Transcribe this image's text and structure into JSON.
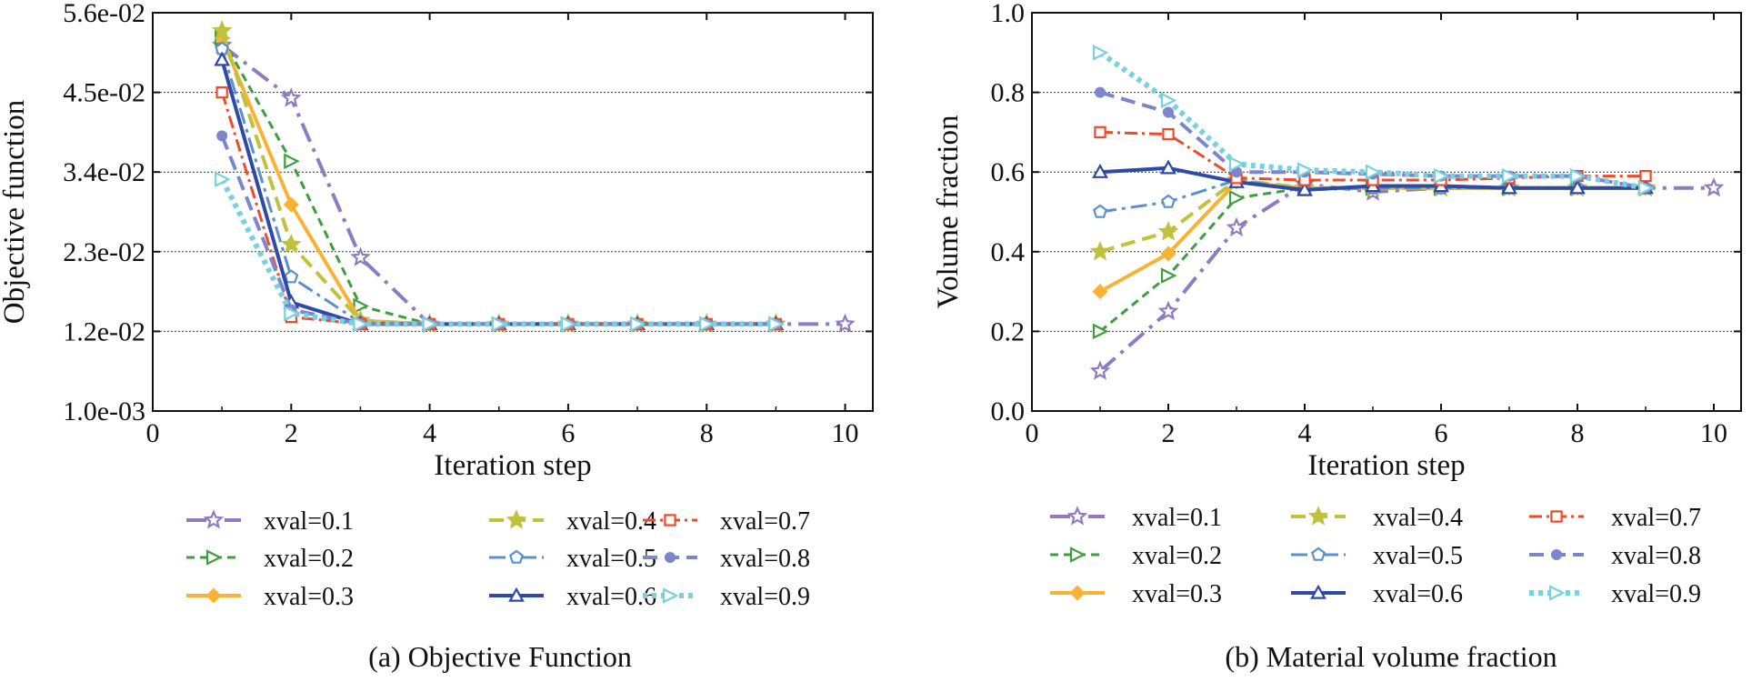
{
  "chart_data": [
    {
      "id": "a",
      "type": "line",
      "caption": "(a)  Objective Function",
      "xlabel": "Iteration step",
      "ylabel": "Objective function",
      "xlim": [
        0,
        10.4
      ],
      "ylim": [
        0.001,
        0.056
      ],
      "xticks": [
        0,
        2,
        4,
        6,
        8,
        10
      ],
      "yticks": [
        0.001,
        0.012,
        0.023,
        0.034,
        0.045,
        0.056
      ],
      "ytick_labels": [
        "1.0e-03",
        "1.2e-02",
        "2.3e-02",
        "3.4e-02",
        "4.5e-02",
        "5.6e-02"
      ],
      "grid": "horizontal dotted",
      "legend_position": "below plot, 3 columns",
      "series": [
        {
          "name": "xval=0.1",
          "x": [
            1,
            2,
            3,
            4,
            5,
            6,
            7,
            8,
            9,
            10
          ],
          "y": [
            0.0515,
            0.0442,
            0.0222,
            0.013,
            0.013,
            0.013,
            0.013,
            0.013,
            0.013,
            0.013
          ]
        },
        {
          "name": "xval=0.2",
          "x": [
            1,
            2,
            3,
            4,
            5,
            6,
            7,
            8,
            9
          ],
          "y": [
            0.0525,
            0.0355,
            0.0155,
            0.013,
            0.013,
            0.013,
            0.013,
            0.013,
            0.013
          ]
        },
        {
          "name": "xval=0.3",
          "x": [
            1,
            2,
            3,
            4,
            5,
            6,
            7,
            8,
            9
          ],
          "y": [
            0.0525,
            0.0295,
            0.0135,
            0.013,
            0.013,
            0.013,
            0.013,
            0.013,
            0.013
          ]
        },
        {
          "name": "xval=0.4",
          "x": [
            1,
            2,
            3,
            4,
            5,
            6,
            7,
            8,
            9
          ],
          "y": [
            0.0535,
            0.024,
            0.0135,
            0.013,
            0.013,
            0.013,
            0.013,
            0.013,
            0.013
          ]
        },
        {
          "name": "xval=0.5",
          "x": [
            1,
            2,
            3,
            4,
            5,
            6,
            7,
            8,
            9
          ],
          "y": [
            0.051,
            0.0195,
            0.0132,
            0.013,
            0.013,
            0.013,
            0.013,
            0.013,
            0.013
          ]
        },
        {
          "name": "xval=0.6",
          "x": [
            1,
            2,
            3,
            4,
            5,
            6,
            7,
            8,
            9
          ],
          "y": [
            0.0495,
            0.016,
            0.013,
            0.013,
            0.013,
            0.013,
            0.013,
            0.013,
            0.013
          ]
        },
        {
          "name": "xval=0.7",
          "x": [
            1,
            2,
            3,
            4,
            5,
            6,
            7,
            8,
            9
          ],
          "y": [
            0.045,
            0.014,
            0.013,
            0.013,
            0.013,
            0.013,
            0.013,
            0.013,
            0.013
          ]
        },
        {
          "name": "xval=0.8",
          "x": [
            1,
            2,
            3,
            4,
            5,
            6,
            7,
            8,
            9
          ],
          "y": [
            0.039,
            0.015,
            0.013,
            0.013,
            0.013,
            0.013,
            0.013,
            0.013,
            0.013
          ]
        },
        {
          "name": "xval=0.9",
          "x": [
            1,
            2,
            3,
            4,
            5,
            6,
            7,
            8,
            9
          ],
          "y": [
            0.033,
            0.0145,
            0.013,
            0.013,
            0.013,
            0.013,
            0.013,
            0.013,
            0.013
          ]
        }
      ]
    },
    {
      "id": "b",
      "type": "line",
      "caption": "(b)  Material volume fraction",
      "xlabel": "Iteration step",
      "ylabel": "Volume fraction",
      "xlim": [
        0,
        10.4
      ],
      "ylim": [
        0.0,
        1.0
      ],
      "xticks": [
        0,
        2,
        4,
        6,
        8,
        10
      ],
      "yticks": [
        0.0,
        0.2,
        0.4,
        0.6,
        0.8,
        1.0
      ],
      "ytick_labels": [
        "0.0",
        "0.2",
        "0.4",
        "0.6",
        "0.8",
        "1.0"
      ],
      "grid": "horizontal dotted",
      "legend_position": "below plot, 3 columns",
      "series": [
        {
          "name": "xval=0.1",
          "x": [
            1,
            2,
            3,
            4,
            5,
            6,
            7,
            8,
            9,
            10
          ],
          "y": [
            0.1,
            0.25,
            0.46,
            0.57,
            0.55,
            0.56,
            0.56,
            0.56,
            0.56,
            0.56
          ]
        },
        {
          "name": "xval=0.2",
          "x": [
            1,
            2,
            3,
            4,
            5,
            6,
            7,
            8,
            9
          ],
          "y": [
            0.2,
            0.34,
            0.535,
            0.56,
            0.56,
            0.56,
            0.56,
            0.56,
            0.56
          ]
        },
        {
          "name": "xval=0.3",
          "x": [
            1,
            2,
            3,
            4,
            5,
            6,
            7,
            8,
            9
          ],
          "y": [
            0.3,
            0.395,
            0.575,
            0.56,
            0.56,
            0.56,
            0.56,
            0.56,
            0.56
          ]
        },
        {
          "name": "xval=0.4",
          "x": [
            1,
            2,
            3,
            4,
            5,
            6,
            7,
            8,
            9
          ],
          "y": [
            0.4,
            0.45,
            0.58,
            0.56,
            0.56,
            0.56,
            0.56,
            0.56,
            0.56
          ]
        },
        {
          "name": "xval=0.5",
          "x": [
            1,
            2,
            3,
            4,
            5,
            6,
            7,
            8,
            9
          ],
          "y": [
            0.5,
            0.525,
            0.58,
            0.555,
            0.56,
            0.56,
            0.56,
            0.56,
            0.56
          ]
        },
        {
          "name": "xval=0.6",
          "x": [
            1,
            2,
            3,
            4,
            5,
            6,
            7,
            8,
            9
          ],
          "y": [
            0.6,
            0.61,
            0.575,
            0.555,
            0.565,
            0.565,
            0.56,
            0.56,
            0.56
          ]
        },
        {
          "name": "xval=0.7",
          "x": [
            1,
            2,
            3,
            4,
            5,
            6,
            7,
            8,
            9
          ],
          "y": [
            0.7,
            0.695,
            0.585,
            0.58,
            0.58,
            0.58,
            0.585,
            0.59,
            0.59
          ]
        },
        {
          "name": "xval=0.8",
          "x": [
            1,
            2,
            3,
            4,
            5,
            6,
            7,
            8,
            9
          ],
          "y": [
            0.8,
            0.75,
            0.6,
            0.6,
            0.595,
            0.59,
            0.59,
            0.59,
            0.56
          ]
        },
        {
          "name": "xval=0.9",
          "x": [
            1,
            2,
            3,
            4,
            5,
            6,
            7,
            8,
            9
          ],
          "y": [
            0.9,
            0.78,
            0.62,
            0.605,
            0.6,
            0.59,
            0.59,
            0.59,
            0.56
          ]
        }
      ]
    }
  ],
  "styles": [
    {
      "name": "xval=0.1",
      "color": "#8e7cc3",
      "dash": "22,8,4,8",
      "width": 4,
      "marker": "star"
    },
    {
      "name": "xval=0.2",
      "color": "#3c9e3c",
      "dash": "9,6",
      "width": 3,
      "marker": "triangle-right"
    },
    {
      "name": "xval=0.3",
      "color": "#f9b233",
      "dash": "",
      "width": 4,
      "marker": "diamond"
    },
    {
      "name": "xval=0.4",
      "color": "#bfc23a",
      "dash": "16,8",
      "width": 4,
      "marker": "star-filled"
    },
    {
      "name": "xval=0.5",
      "color": "#5a8fd0",
      "dash": "18,6,4,6",
      "width": 3,
      "marker": "pentagon"
    },
    {
      "name": "xval=0.6",
      "color": "#2e4aa8",
      "dash": "",
      "width": 4,
      "marker": "triangle-up"
    },
    {
      "name": "xval=0.7",
      "color": "#ef4b2a",
      "dash": "14,5,3,5",
      "width": 3,
      "marker": "square"
    },
    {
      "name": "xval=0.8",
      "color": "#7b86cc",
      "dash": "16,8",
      "width": 4,
      "marker": "circle-filled"
    },
    {
      "name": "xval=0.9",
      "color": "#78d0e0",
      "dash": "5,5",
      "width": 6,
      "marker": "triangle-right"
    }
  ]
}
